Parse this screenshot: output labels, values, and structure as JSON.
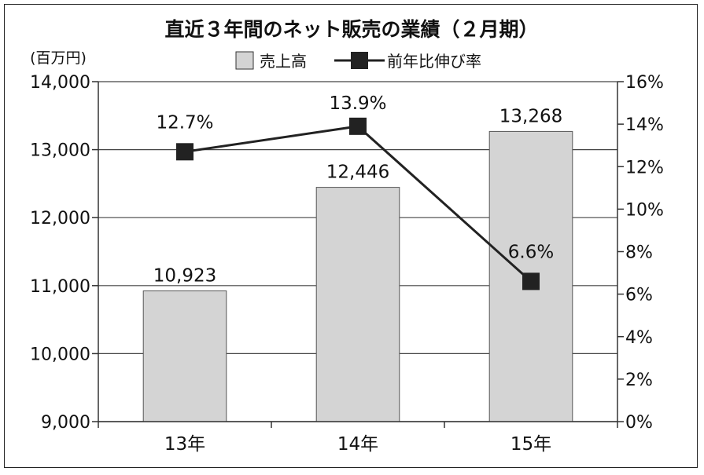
{
  "chart_data": {
    "type": "bar+line",
    "title": "直近３年間のネット販売の業績（２月期）",
    "unit_left": "(百万円)",
    "categories": [
      "13年",
      "14年",
      "15年"
    ],
    "series": [
      {
        "name": "売上高",
        "type": "bar",
        "axis": "left",
        "values": [
          10923,
          12446,
          13268
        ],
        "labels": [
          "10,923",
          "12,446",
          "13,268"
        ],
        "color": "#d4d4d4"
      },
      {
        "name": "前年比伸び率",
        "type": "line",
        "axis": "right",
        "values": [
          12.7,
          13.9,
          6.6
        ],
        "labels": [
          "12.7%",
          "13.9%",
          "6.6%"
        ],
        "color": "#222222"
      }
    ],
    "y_left": {
      "min": 9000,
      "max": 14000,
      "ticks": [
        9000,
        10000,
        11000,
        12000,
        13000,
        14000
      ],
      "tick_labels": [
        "9,000",
        "10,000",
        "11,000",
        "12,000",
        "13,000",
        "14,000"
      ]
    },
    "y_right": {
      "min": 0,
      "max": 16,
      "ticks": [
        0,
        2,
        4,
        6,
        8,
        10,
        12,
        14,
        16
      ],
      "tick_labels": [
        "0%",
        "2%",
        "4%",
        "6%",
        "8%",
        "10%",
        "12%",
        "14%",
        "16%"
      ]
    },
    "grid": "horizontal",
    "legend": "top-center"
  }
}
